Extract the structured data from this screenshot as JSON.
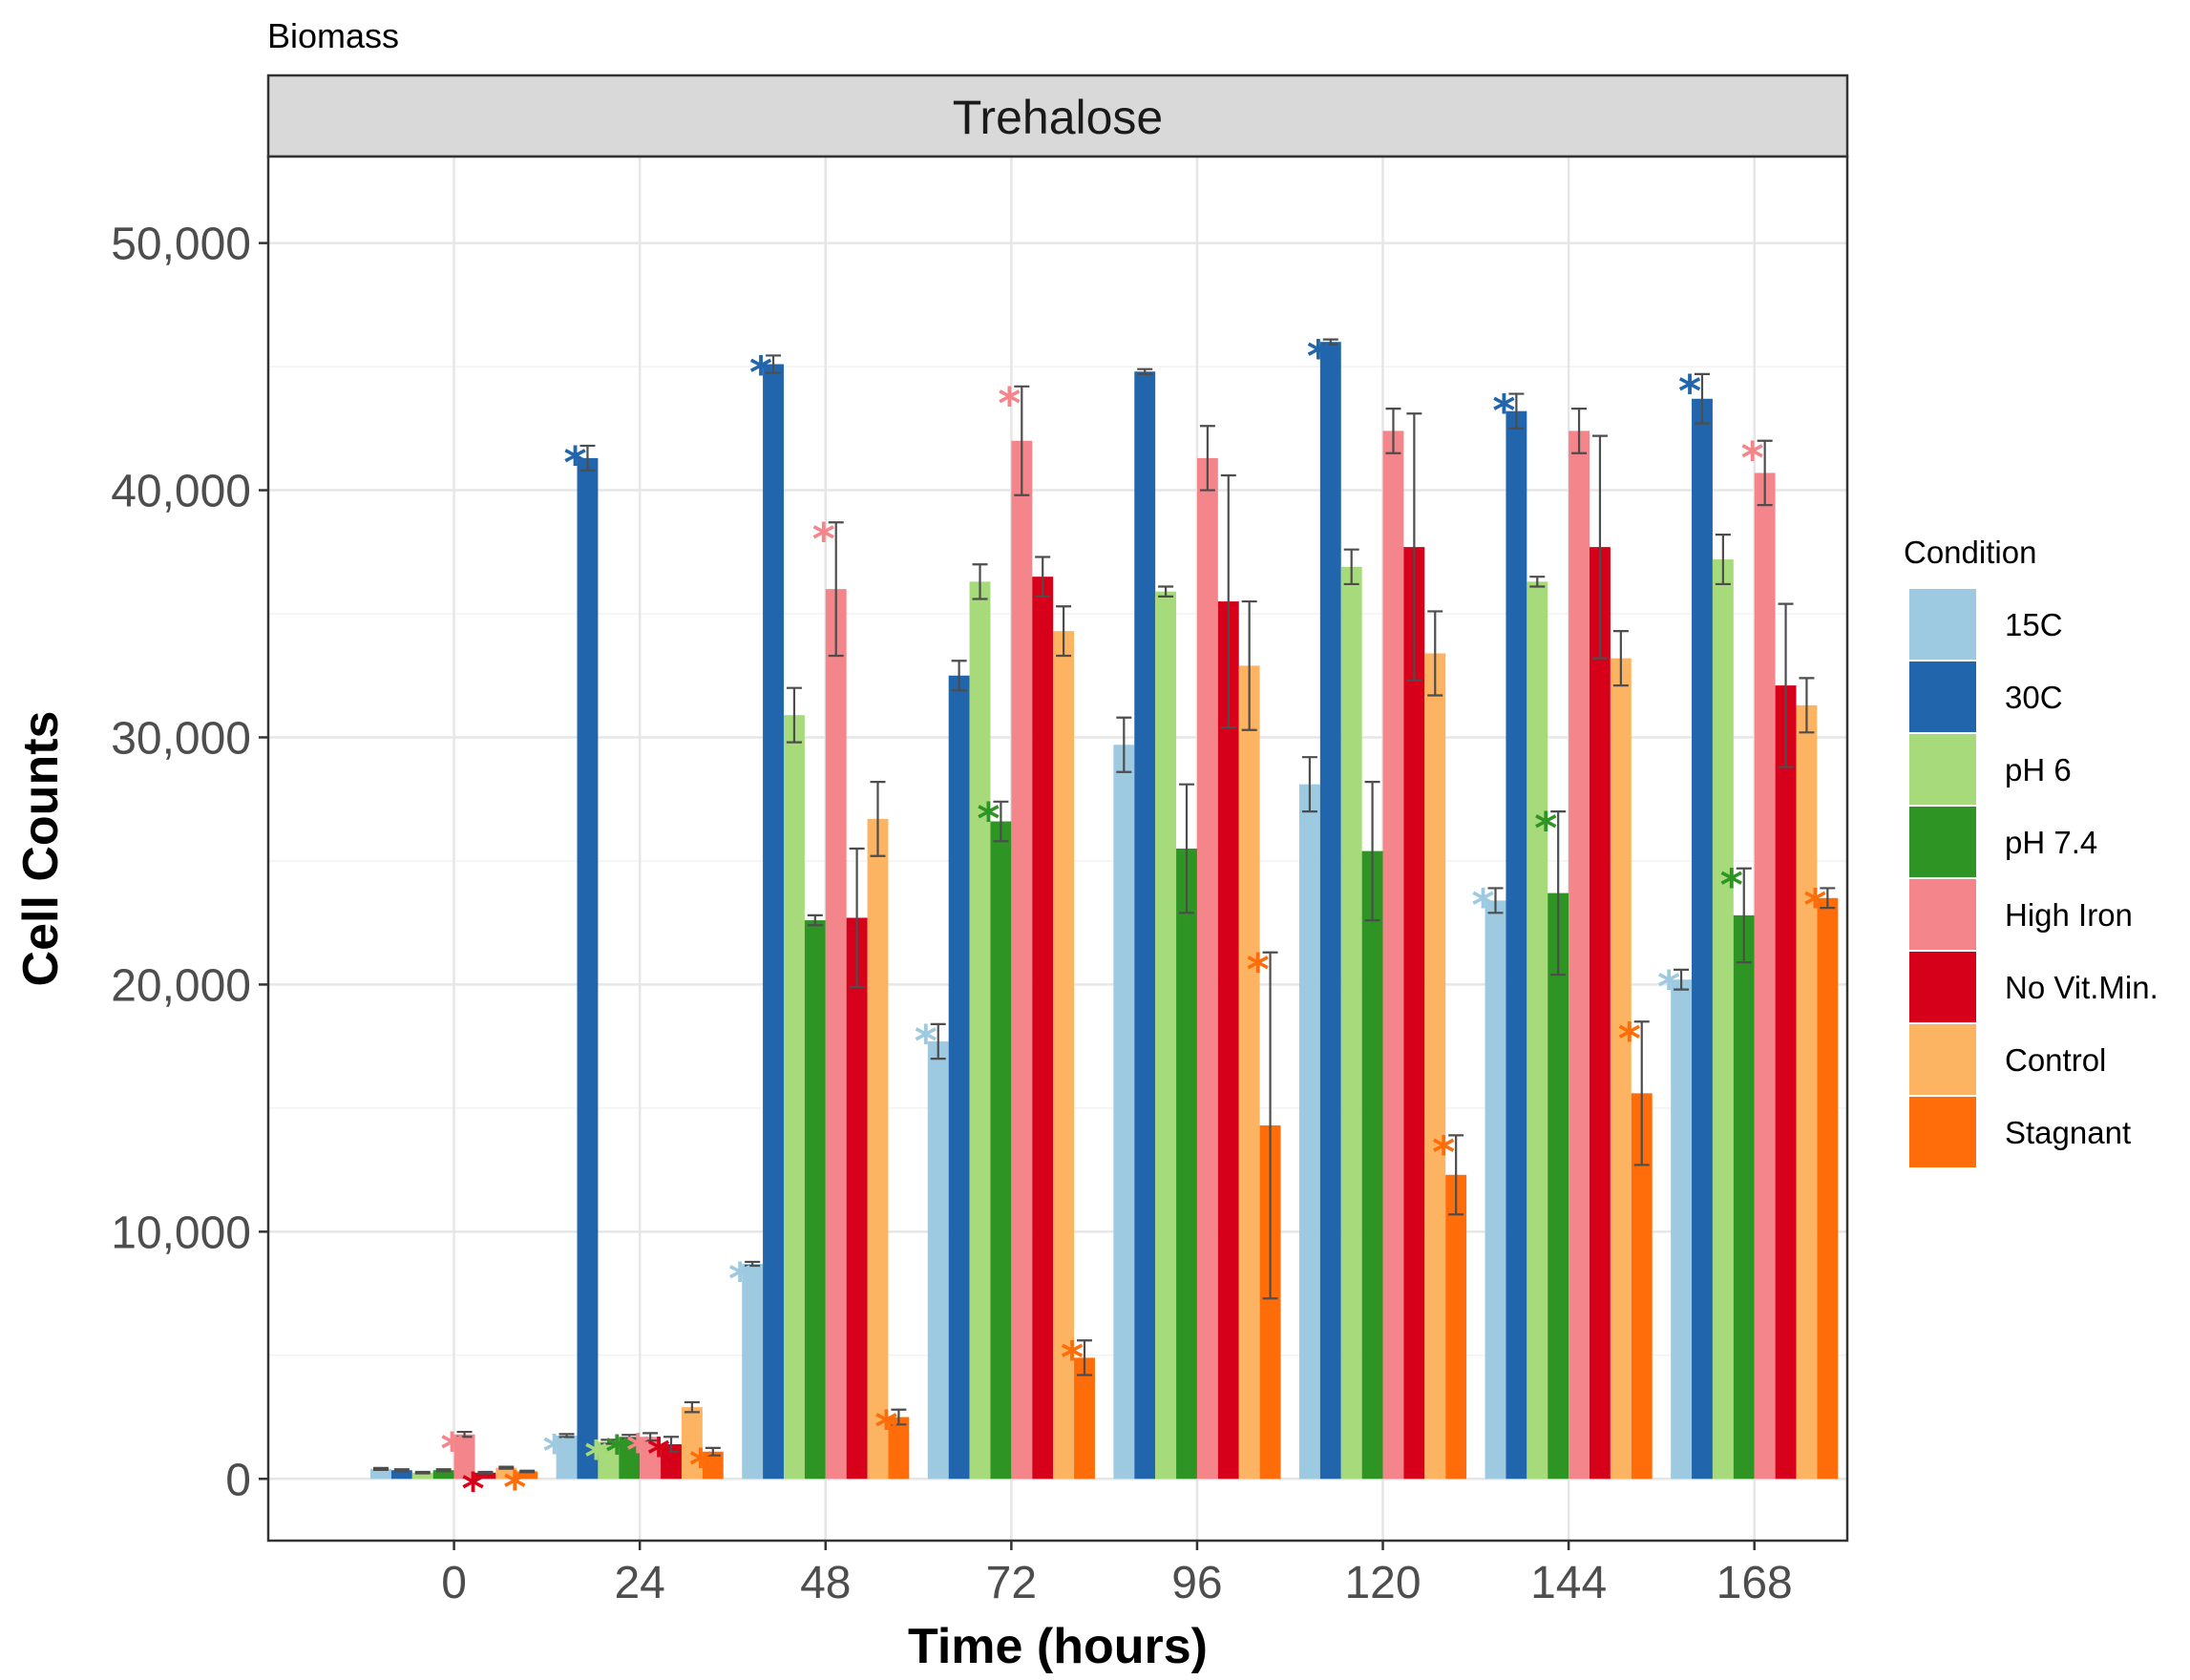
{
  "chart_data": {
    "type": "bar",
    "title": "Biomass",
    "facet": "Trehalose",
    "xlabel": "Time (hours)",
    "ylabel": "Cell Counts",
    "ylim": [
      -2500,
      53500
    ],
    "yticks": [
      0,
      10000,
      20000,
      30000,
      40000,
      50000
    ],
    "ytick_labels": [
      "0",
      "10,000",
      "20,000",
      "30,000",
      "40,000",
      "50,000"
    ],
    "categories": [
      "0",
      "24",
      "48",
      "72",
      "96",
      "120",
      "144",
      "168"
    ],
    "grid": true,
    "legend_title": "Condition",
    "legend_position": "right",
    "series": [
      {
        "name": "15C",
        "color": "#9ECAE1",
        "values": [
          400,
          1750,
          8700,
          17700,
          29700,
          28100,
          23400,
          20200
        ],
        "errors": [
          40,
          60,
          80,
          700,
          1100,
          1100,
          500,
          400
        ],
        "significant": [
          false,
          true,
          true,
          true,
          false,
          false,
          true,
          true
        ]
      },
      {
        "name": "30C",
        "color": "#2166AC",
        "values": [
          350,
          41300,
          45100,
          32500,
          44800,
          46000,
          43200,
          43700
        ],
        "errors": [
          40,
          500,
          350,
          600,
          100,
          100,
          700,
          1000
        ],
        "significant": [
          false,
          true,
          true,
          false,
          false,
          true,
          true,
          true
        ]
      },
      {
        "name": "pH 6",
        "color": "#A6DA7A",
        "values": [
          250,
          1500,
          30900,
          36300,
          35900,
          36900,
          36300,
          37200
        ],
        "errors": [
          30,
          80,
          1100,
          700,
          200,
          700,
          200,
          1000
        ],
        "significant": [
          false,
          true,
          false,
          false,
          false,
          false,
          false,
          false
        ]
      },
      {
        "name": "pH 7.4",
        "color": "#2E9424",
        "values": [
          350,
          1700,
          22600,
          26600,
          25500,
          25400,
          23700,
          22800
        ],
        "errors": [
          40,
          80,
          200,
          800,
          2600,
          2800,
          3300,
          1900
        ],
        "significant": [
          false,
          true,
          false,
          true,
          false,
          false,
          true,
          true
        ]
      },
      {
        "name": "High Iron",
        "color": "#F4858A",
        "values": [
          1800,
          1700,
          36000,
          42000,
          41300,
          42400,
          42400,
          40700
        ],
        "errors": [
          100,
          150,
          2700,
          2200,
          1300,
          900,
          900,
          1300
        ],
        "significant": [
          true,
          true,
          true,
          true,
          false,
          false,
          false,
          true
        ]
      },
      {
        "name": "No Vit.Min.",
        "color": "#D7001A",
        "values": [
          250,
          1400,
          22700,
          36500,
          35500,
          37700,
          37700,
          32100
        ],
        "errors": [
          30,
          300,
          2800,
          800,
          5100,
          5400,
          4500,
          3300
        ],
        "significant": [
          true,
          true,
          false,
          false,
          false,
          false,
          false,
          false
        ]
      },
      {
        "name": "Control",
        "color": "#FDB462",
        "values": [
          450,
          2900,
          26700,
          34300,
          32900,
          33400,
          33200,
          31300
        ],
        "errors": [
          40,
          200,
          1500,
          1000,
          2600,
          1700,
          1100,
          1100
        ],
        "significant": [
          false,
          false,
          false,
          false,
          false,
          false,
          false,
          false
        ]
      },
      {
        "name": "Stagnant",
        "color": "#FF6C0A",
        "values": [
          300,
          1100,
          2500,
          4900,
          14300,
          12300,
          15600,
          23500
        ],
        "errors": [
          30,
          150,
          300,
          700,
          7000,
          1600,
          2900,
          400
        ],
        "significant": [
          true,
          true,
          true,
          true,
          true,
          true,
          true,
          true
        ]
      }
    ]
  }
}
